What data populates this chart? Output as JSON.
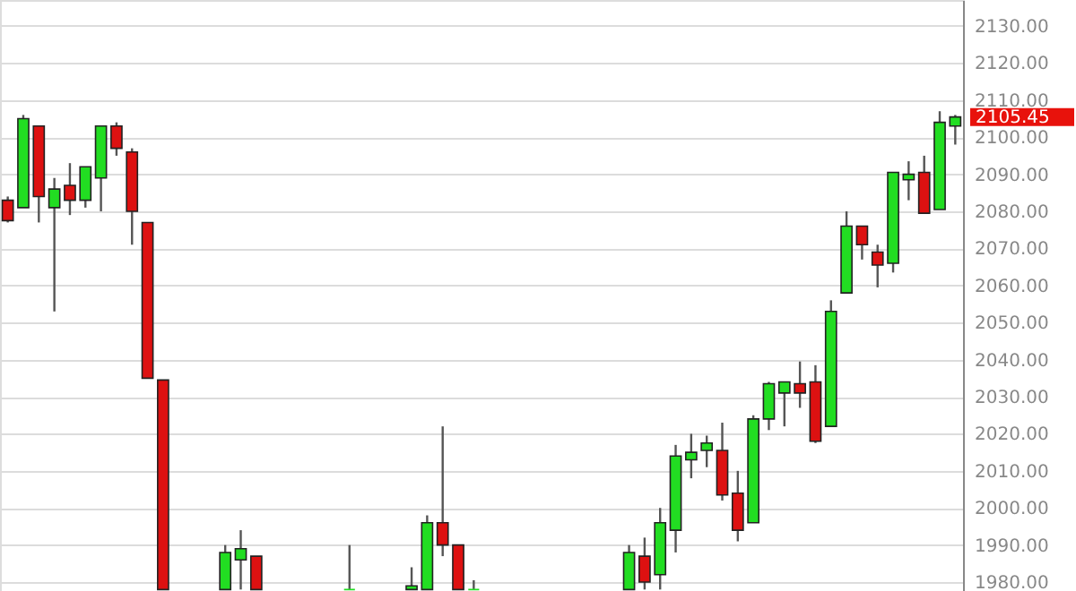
{
  "chart_data": {
    "type": "candlestick",
    "categories": [
      null,
      null,
      null,
      null,
      null,
      null,
      null,
      null,
      null,
      null,
      null,
      null,
      null,
      null,
      null,
      null,
      null,
      null,
      null,
      null,
      null,
      null,
      null,
      null,
      null,
      null,
      null,
      null,
      null,
      null,
      null,
      null,
      null,
      null,
      null,
      null,
      null,
      null,
      null,
      null,
      null,
      null,
      null,
      null,
      null,
      null,
      null,
      null,
      null,
      null,
      null,
      null,
      null,
      null,
      null,
      null,
      null,
      null,
      null,
      null,
      null,
      null
    ],
    "ohlc": [
      [
        2083,
        2084,
        2077,
        2077.5
      ],
      [
        2081,
        2106,
        2081,
        2105
      ],
      [
        2103,
        2103,
        2077,
        2084
      ],
      [
        2081,
        2089,
        2053,
        2086
      ],
      [
        2087,
        2093,
        2079,
        2083
      ],
      [
        2083,
        2092,
        2081,
        2092
      ],
      [
        2089,
        2103,
        2080,
        2103
      ],
      [
        2103,
        2104,
        2095,
        2097
      ],
      [
        2096,
        2097,
        2071,
        2080
      ],
      [
        2077,
        2077,
        2035,
        2035
      ],
      [
        2034.5,
        2034.5,
        1978,
        1978
      ],
      null,
      null,
      null,
      [
        1978,
        1990,
        1978,
        1988
      ],
      [
        1986,
        1994,
        1978,
        1989
      ],
      [
        1987,
        1987,
        1978,
        1978
      ],
      null,
      null,
      null,
      null,
      null,
      [
        1978,
        1990,
        1978,
        1978
      ],
      null,
      null,
      null,
      [
        1978,
        1984,
        1978,
        1979
      ],
      [
        1978,
        1998,
        1978,
        1996
      ],
      [
        1996,
        2022,
        1987,
        1990
      ],
      [
        1990,
        1990,
        1978,
        1978
      ],
      [
        1978,
        1980.5,
        1978,
        1978
      ],
      null,
      null,
      null,
      null,
      null,
      null,
      null,
      null,
      null,
      [
        1978,
        1990,
        1978,
        1988
      ],
      [
        1987,
        1992,
        1978,
        1980
      ],
      [
        1982,
        2000,
        1978,
        1996
      ],
      [
        1994,
        2017,
        1988,
        2014
      ],
      [
        2013,
        2020,
        2008,
        2015
      ],
      [
        2015.5,
        2019.5,
        2011,
        2017.5
      ],
      [
        2015.5,
        2023,
        2002,
        2003.5
      ],
      [
        2004,
        2010,
        1991,
        1994
      ],
      [
        1996,
        2025,
        1996,
        2024
      ],
      [
        2024,
        2034,
        2021,
        2033.5
      ],
      [
        2031,
        2034,
        2022,
        2034
      ],
      [
        2033.5,
        2039.5,
        2027,
        2031
      ],
      [
        2034,
        2038.5,
        2017.5,
        2018
      ],
      [
        2022,
        2056,
        2022,
        2053
      ],
      [
        2058,
        2080,
        2058,
        2076
      ],
      [
        2076,
        2076,
        2067,
        2071
      ],
      [
        2069,
        2071,
        2059.5,
        2065.5
      ],
      [
        2066,
        2090.5,
        2063.5,
        2090.5
      ],
      [
        2088.5,
        2093.5,
        2083,
        2090
      ],
      [
        2090.5,
        2095,
        2079.5,
        2079.5
      ],
      [
        2080.5,
        2107,
        2080.5,
        2104
      ],
      [
        2103,
        2106,
        2098,
        2105.45
      ]
    ],
    "colors": [
      "#dd1111",
      "#22dd22",
      "#dd1111",
      "#22dd22",
      "#dd1111",
      "#22dd22",
      "#22dd22",
      "#dd1111",
      "#dd1111",
      "#dd1111",
      "#dd1111",
      null,
      null,
      null,
      "#22dd22",
      "#22dd22",
      "#dd1111",
      null,
      null,
      null,
      null,
      null,
      "#22dd22",
      null,
      null,
      null,
      "#22dd22",
      "#22dd22",
      "#dd1111",
      "#dd1111",
      "#22dd22",
      null,
      null,
      null,
      null,
      null,
      null,
      null,
      null,
      null,
      "#22dd22",
      "#dd1111",
      "#22dd22",
      "#22dd22",
      "#22dd22",
      "#22dd22",
      "#dd1111",
      "#dd1111",
      "#22dd22",
      "#22dd22",
      "#22dd22",
      "#dd1111",
      "#dd1111",
      "#22dd22",
      "#22dd22",
      "#dd1111",
      "#dd1111",
      "#22dd22",
      "#22dd22",
      "#dd1111",
      "#22dd22",
      "#22dd22"
    ],
    "ylim": [
      1977.6,
      2137
    ],
    "yticks": [
      {
        "value": 1980,
        "label": "1980.00"
      },
      {
        "value": 1990,
        "label": "1990.00"
      },
      {
        "value": 2000,
        "label": "2000.00"
      },
      {
        "value": 2010,
        "label": "2010.00"
      },
      {
        "value": 2020,
        "label": "2020.00"
      },
      {
        "value": 2030,
        "label": "2030.00"
      },
      {
        "value": 2040,
        "label": "2040.00"
      },
      {
        "value": 2050,
        "label": "2050.00"
      },
      {
        "value": 2060,
        "label": "2060.00"
      },
      {
        "value": 2070,
        "label": "2070.00"
      },
      {
        "value": 2080,
        "label": "2080.00"
      },
      {
        "value": 2090,
        "label": "2090.00"
      },
      {
        "value": 2100,
        "label": "2100.00"
      },
      {
        "value": 2110,
        "label": "2110.00"
      },
      {
        "value": 2120,
        "label": "2120.00"
      },
      {
        "value": 2130,
        "label": "2130.00"
      }
    ],
    "annotations": [
      "2105.45"
    ],
    "grid": "y",
    "tick_labels": "y"
  }
}
